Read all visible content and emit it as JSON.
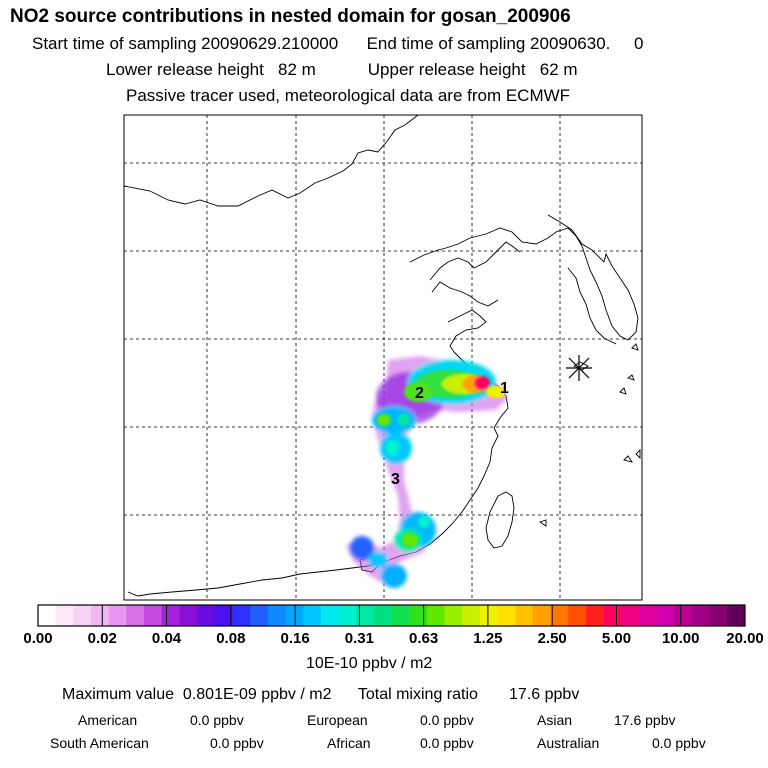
{
  "header": {
    "title": "NO2 source contributions in nested domain for gosan_200906",
    "start_label": "Start time of sampling 20090629.210000",
    "end_label": "End time of sampling 20090630.",
    "end_value": "0",
    "lower_label": "Lower release height",
    "lower_value": "82 m",
    "upper_label": "Upper release height",
    "upper_value": "62 m",
    "note": "Passive tracer used, meteorological data are from ECMWF"
  },
  "map": {
    "source_labels": [
      "1",
      "2",
      "3"
    ],
    "receptor": "Gosan station marker"
  },
  "colorbar": {
    "tick_labels": [
      "0.00",
      "0.02",
      "0.04",
      "0.08",
      "0.16",
      "0.31",
      "0.63",
      "1.25",
      "2.50",
      "5.00",
      "10.00",
      "20.00"
    ],
    "colors": [
      "#ffffff",
      "#fbe8fb",
      "#f6d2f6",
      "#f0b8f2",
      "#e898ee",
      "#d870e6",
      "#c44ae2",
      "#a820dc",
      "#8a10d8",
      "#6a0ce0",
      "#4a10f0",
      "#3030ff",
      "#2060ff",
      "#1088ff",
      "#00a8ff",
      "#00c8ff",
      "#00e8f0",
      "#00f0d0",
      "#00e8a8",
      "#00e080",
      "#10e050",
      "#30e020",
      "#60e800",
      "#98f000",
      "#c8f000",
      "#f0f000",
      "#ffe000",
      "#ffc000",
      "#ffa000",
      "#ff7800",
      "#ff5000",
      "#ff2020",
      "#ff0060",
      "#f00080",
      "#e000a0",
      "#d000b0",
      "#b80098",
      "#a00088",
      "#880070",
      "#600058"
    ],
    "units": "10E-10 ppbv / m2"
  },
  "summary": {
    "max_label": "Maximum value",
    "max_value": "0.801E-09 ppbv / m2",
    "total_label": "Total mixing ratio",
    "total_value": "17.6 ppbv",
    "regions": [
      {
        "name": "American",
        "value": "0.0 ppbv"
      },
      {
        "name": "European",
        "value": "0.0 ppbv"
      },
      {
        "name": "Asian",
        "value": "17.6 ppbv"
      },
      {
        "name": "South American",
        "value": "0.0 ppbv"
      },
      {
        "name": "African",
        "value": "0.0 ppbv"
      },
      {
        "name": "Australian",
        "value": "0.0 ppbv"
      }
    ]
  }
}
